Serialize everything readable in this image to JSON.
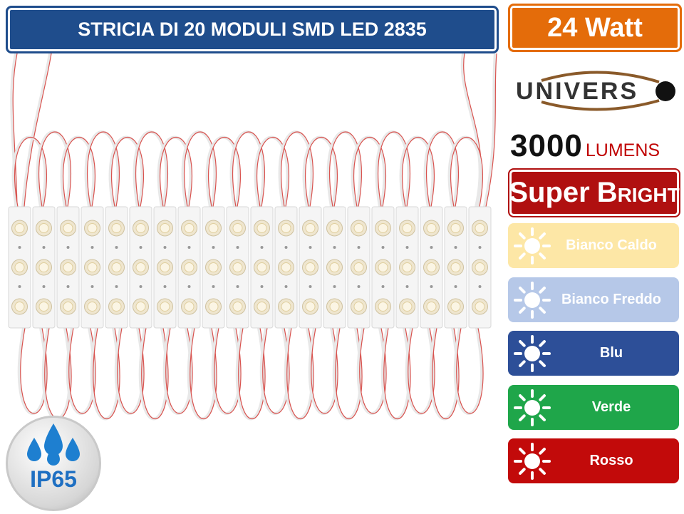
{
  "header": {
    "title": "STRICIA DI 20 MODULI SMD LED 2835"
  },
  "badge": {
    "power": "24 Watt"
  },
  "brand": {
    "logo": "UNIVERS"
  },
  "lumens": {
    "value": "3000",
    "unit": "LUMENS"
  },
  "super_bright": {
    "super": "Super",
    "bright": "BRIGHT"
  },
  "colors": [
    {
      "label": "Bianco Caldo",
      "bg": "#fde7a6"
    },
    {
      "label": "Bianco Freddo",
      "bg": "#b6c8e8"
    },
    {
      "label": "Blu",
      "bg": "#2d4f98"
    },
    {
      "label": "Verde",
      "bg": "#1fa64a"
    },
    {
      "label": "Rosso",
      "bg": "#c20a0a"
    }
  ],
  "ip_rating": "IP65"
}
